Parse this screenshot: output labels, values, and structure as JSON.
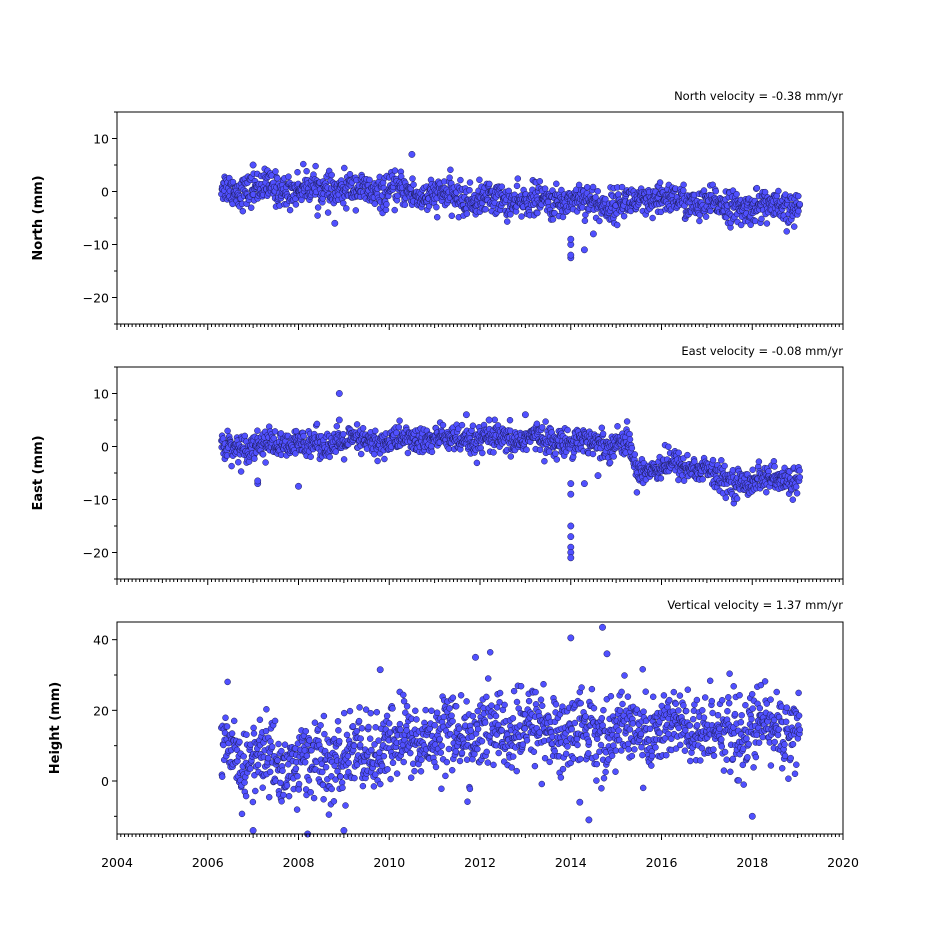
{
  "chart_data": [
    {
      "type": "scatter",
      "annotation": "North velocity = -0.38 mm/yr",
      "ylabel": "North (mm)",
      "xlim": [
        2004,
        2020
      ],
      "ylim": [
        -25,
        15
      ],
      "yticks": [
        10,
        0,
        -10,
        -20
      ],
      "ytick_labels": [
        "10",
        "0",
        "−10",
        "−20"
      ],
      "color": "#5050ff",
      "x_start": 2006.3,
      "x_end": 2019.05,
      "trend": [
        [
          2006.3,
          0.5
        ],
        [
          2008.0,
          0.5
        ],
        [
          2010.0,
          0.0
        ],
        [
          2012.0,
          -1.5
        ],
        [
          2013.5,
          -2.0
        ],
        [
          2014.0,
          -1.5
        ],
        [
          2015.0,
          -2.5
        ],
        [
          2016.0,
          -1.5
        ],
        [
          2017.0,
          -2.5
        ],
        [
          2018.0,
          -3.0
        ],
        [
          2019.05,
          -3.0
        ]
      ],
      "noise_sd": 1.5,
      "outliers": [
        [
          2010.5,
          7.0
        ],
        [
          2014.0,
          -12.5
        ],
        [
          2014.0,
          -12.0
        ],
        [
          2014.0,
          -10.0
        ],
        [
          2014.0,
          -9.0
        ],
        [
          2014.3,
          -11.0
        ],
        [
          2014.5,
          -8.0
        ],
        [
          2008.8,
          -6.0
        ],
        [
          2007.0,
          5.0
        ]
      ]
    },
    {
      "type": "scatter",
      "annotation": "East velocity = -0.08 mm/yr",
      "ylabel": "East (mm)",
      "xlim": [
        2004,
        2020
      ],
      "ylim": [
        -25,
        15
      ],
      "yticks": [
        10,
        0,
        -10,
        -20
      ],
      "ytick_labels": [
        "10",
        "0",
        "−10",
        "−20"
      ],
      "color": "#5050ff",
      "x_start": 2006.3,
      "x_end": 2019.05,
      "trend": [
        [
          2006.3,
          0.0
        ],
        [
          2008.0,
          0.5
        ],
        [
          2010.0,
          1.0
        ],
        [
          2011.0,
          1.5
        ],
        [
          2012.0,
          1.0
        ],
        [
          2013.0,
          1.5
        ],
        [
          2014.0,
          1.0
        ],
        [
          2015.3,
          0.5
        ],
        [
          2015.4,
          -4.5
        ],
        [
          2016.0,
          -3.5
        ],
        [
          2017.0,
          -4.0
        ],
        [
          2017.2,
          -6.5
        ],
        [
          2018.0,
          -6.5
        ],
        [
          2019.05,
          -6.0
        ]
      ],
      "noise_sd": 1.3,
      "outliers": [
        [
          2008.9,
          10.0
        ],
        [
          2008.9,
          5.0
        ],
        [
          2011.7,
          6.0
        ],
        [
          2013.0,
          6.0
        ],
        [
          2012.2,
          5.0
        ],
        [
          2007.1,
          -7.0
        ],
        [
          2007.1,
          -6.5
        ],
        [
          2008.0,
          -7.5
        ],
        [
          2014.0,
          -7.0
        ],
        [
          2014.0,
          -9.0
        ],
        [
          2014.0,
          -15.0
        ],
        [
          2014.0,
          -17.0
        ],
        [
          2014.0,
          -19.0
        ],
        [
          2014.0,
          -20.0
        ],
        [
          2014.0,
          -21.0
        ],
        [
          2014.3,
          -7.0
        ],
        [
          2014.6,
          -5.5
        ]
      ]
    },
    {
      "type": "scatter",
      "annotation": "Vertical velocity = 1.37 mm/yr",
      "ylabel": "Height (mm)",
      "xlim": [
        2004,
        2020
      ],
      "ylim": [
        -15,
        45
      ],
      "yticks": [
        40,
        20,
        0
      ],
      "ytick_labels": [
        "40",
        "20",
        "0"
      ],
      "color": "#5050ff",
      "x_start": 2006.3,
      "x_end": 2019.05,
      "trend": [
        [
          2006.3,
          8.0
        ],
        [
          2007.0,
          6.0
        ],
        [
          2008.0,
          5.0
        ],
        [
          2009.0,
          6.0
        ],
        [
          2010.0,
          10.0
        ],
        [
          2011.0,
          13.0
        ],
        [
          2012.0,
          13.0
        ],
        [
          2013.0,
          15.0
        ],
        [
          2014.0,
          14.0
        ],
        [
          2015.0,
          14.0
        ],
        [
          2016.0,
          15.0
        ],
        [
          2017.0,
          14.0
        ],
        [
          2018.0,
          14.0
        ],
        [
          2019.05,
          16.0
        ]
      ],
      "noise_sd": 5.5,
      "outliers": [
        [
          2014.7,
          43.5
        ],
        [
          2014.0,
          40.5
        ],
        [
          2014.8,
          36.0
        ],
        [
          2011.9,
          35.0
        ],
        [
          2009.8,
          31.5
        ],
        [
          2014.2,
          -6.0
        ],
        [
          2014.4,
          -11.0
        ],
        [
          2008.2,
          -15.0
        ],
        [
          2009.0,
          -14.0
        ],
        [
          2018.0,
          -10.0
        ],
        [
          2007.0,
          -14.0
        ]
      ]
    }
  ],
  "x_tick_labels": [
    "2004",
    "2006",
    "2008",
    "2010",
    "2012",
    "2014",
    "2016",
    "2018",
    "2020"
  ],
  "x_ticks": [
    2004,
    2006,
    2008,
    2010,
    2012,
    2014,
    2016,
    2018,
    2020
  ]
}
